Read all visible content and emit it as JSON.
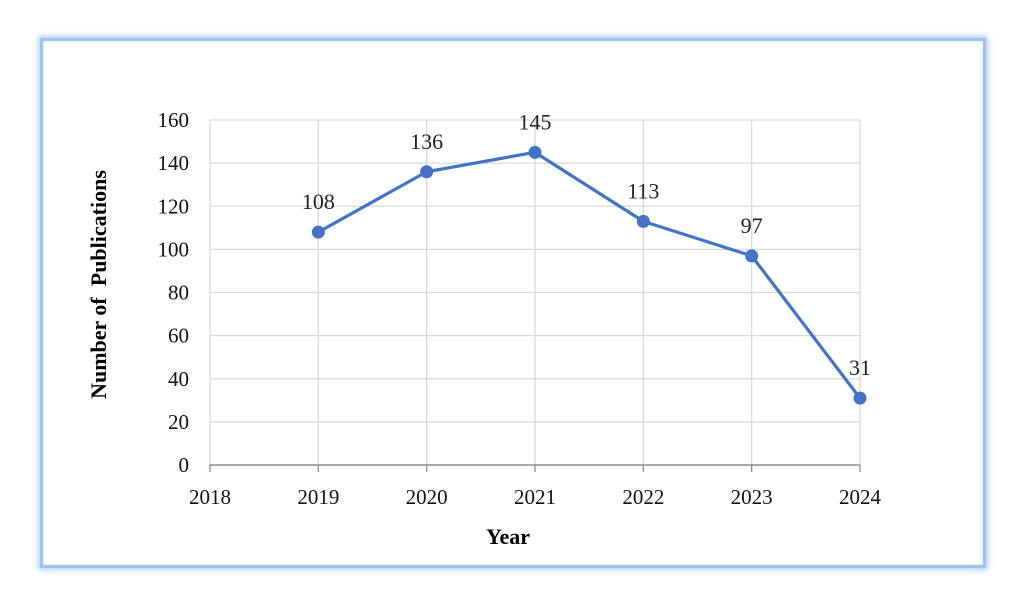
{
  "chart_data": {
    "type": "line",
    "title": "",
    "xlabel": "Year",
    "ylabel": "Number of  Publications",
    "x_ticks": [
      "2018",
      "2019",
      "2020",
      "2021",
      "2022",
      "2023",
      "2024"
    ],
    "xlim": [
      2018,
      2024
    ],
    "ylim": [
      0,
      160
    ],
    "y_ticks": [
      "0",
      "20",
      "40",
      "60",
      "80",
      "100",
      "120",
      "140",
      "160"
    ],
    "grid": true,
    "legend": "none",
    "series": [
      {
        "x": [
          2019,
          2020,
          2021,
          2022,
          2023,
          2024
        ],
        "values": [
          108,
          136,
          145,
          113,
          97,
          31
        ],
        "labels": [
          "108",
          "136",
          "145",
          "113",
          "97",
          "31"
        ],
        "color": "#4472c4"
      }
    ]
  },
  "colors": {
    "series": "#4472c4",
    "frame": "#9dc3f0",
    "grid": "#d9d9d9"
  }
}
